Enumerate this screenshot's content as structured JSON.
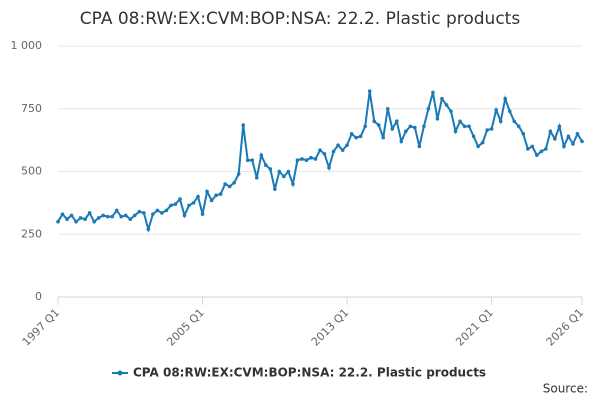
{
  "chart_data": {
    "type": "line",
    "title": "CPA 08:RW:EX:CVM:BOP:NSA: 22.2. Plastic products",
    "categories": [
      "1997 Q1",
      null,
      null,
      null,
      null,
      null,
      null,
      null,
      null,
      null,
      null,
      null,
      null,
      null,
      null,
      null,
      null,
      null,
      null,
      null,
      null,
      null,
      null,
      null,
      null,
      null,
      null,
      null,
      null,
      null,
      null,
      null,
      "2005 Q1",
      null,
      null,
      null,
      null,
      null,
      null,
      null,
      null,
      null,
      null,
      null,
      null,
      null,
      null,
      null,
      null,
      null,
      null,
      null,
      null,
      null,
      null,
      null,
      null,
      null,
      null,
      null,
      null,
      null,
      null,
      null,
      "2013 Q1",
      null,
      null,
      null,
      null,
      null,
      null,
      null,
      null,
      null,
      null,
      null,
      null,
      null,
      null,
      null,
      null,
      null,
      null,
      null,
      null,
      null,
      null,
      null,
      null,
      null,
      null,
      null,
      null,
      null,
      null,
      null,
      "2021 Q1",
      null,
      null,
      null,
      null,
      null,
      null,
      null,
      null,
      null,
      null,
      null,
      null,
      null,
      null,
      null,
      null,
      null,
      null,
      null,
      "2026 Q1"
    ],
    "series": [
      {
        "name": "CPA 08:RW:EX:CVM:BOP:NSA: 22.2. Plastic products",
        "color": "#1a7ab8",
        "values": [
          300,
          330,
          310,
          325,
          300,
          315,
          310,
          335,
          300,
          315,
          325,
          320,
          320,
          345,
          320,
          325,
          310,
          325,
          340,
          335,
          270,
          330,
          345,
          335,
          345,
          365,
          370,
          390,
          325,
          365,
          375,
          400,
          330,
          420,
          385,
          405,
          410,
          450,
          440,
          455,
          490,
          685,
          545,
          545,
          475,
          565,
          525,
          510,
          430,
          500,
          480,
          500,
          450,
          545,
          550,
          545,
          555,
          550,
          585,
          570,
          515,
          580,
          605,
          585,
          605,
          650,
          635,
          640,
          680,
          820,
          700,
          685,
          635,
          750,
          670,
          700,
          620,
          660,
          680,
          675,
          600,
          680,
          750,
          815,
          710,
          790,
          765,
          740,
          660,
          700,
          680,
          680,
          640,
          600,
          615,
          665,
          670,
          745,
          700,
          790,
          740,
          700,
          680,
          650,
          590,
          600,
          565,
          580,
          590,
          660,
          630,
          680,
          600,
          640,
          610,
          650,
          620
        ]
      }
    ],
    "ylim": [
      0,
      1000
    ],
    "yticks": [
      0,
      250,
      500,
      750,
      {
        "value": 1000,
        "label": "1 000"
      }
    ],
    "grid": true,
    "legend": "bottom",
    "source": "Source:"
  }
}
